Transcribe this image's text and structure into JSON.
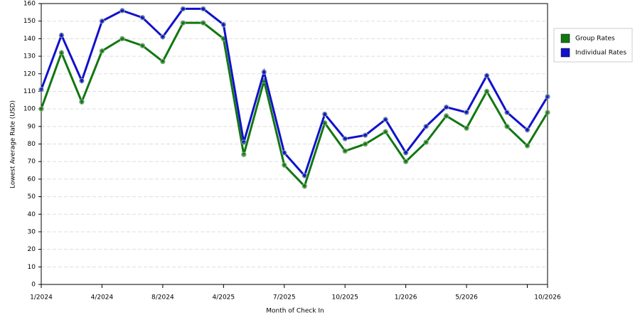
{
  "chart_data": {
    "type": "line",
    "x_label": "Month of Check In",
    "y_label": "Lowest Average Rate (USD)",
    "categories": [
      "1/2024",
      null,
      null,
      "4/2024",
      null,
      null,
      "8/2024",
      null,
      null,
      "4/2025",
      null,
      null,
      "7/2025",
      null,
      null,
      "10/2025",
      null,
      null,
      "1/2026",
      null,
      null,
      "5/2026",
      null,
      null,
      null,
      "10/2026"
    ],
    "series": [
      {
        "name": "Group Rates",
        "color": "#117711",
        "values": [
          100,
          132,
          104,
          133,
          140,
          136,
          127,
          149,
          149,
          140,
          74,
          116,
          68,
          56,
          92,
          76,
          80,
          87,
          70,
          81,
          96,
          89,
          110,
          90,
          79,
          98
        ]
      },
      {
        "name": "Individual Rates",
        "color": "#1111cc",
        "values": [
          111,
          142,
          116,
          150,
          156,
          152,
          141,
          157,
          157,
          148,
          81,
          121,
          75,
          62,
          97,
          83,
          85,
          94,
          75,
          90,
          101,
          98,
          119,
          98,
          88,
          107
        ]
      }
    ],
    "ylim": [
      0,
      160
    ],
    "yticks": [
      0,
      10,
      20,
      30,
      40,
      50,
      60,
      70,
      80,
      90,
      100,
      110,
      120,
      130,
      140,
      150,
      160
    ],
    "grid": true,
    "legend": "right"
  }
}
